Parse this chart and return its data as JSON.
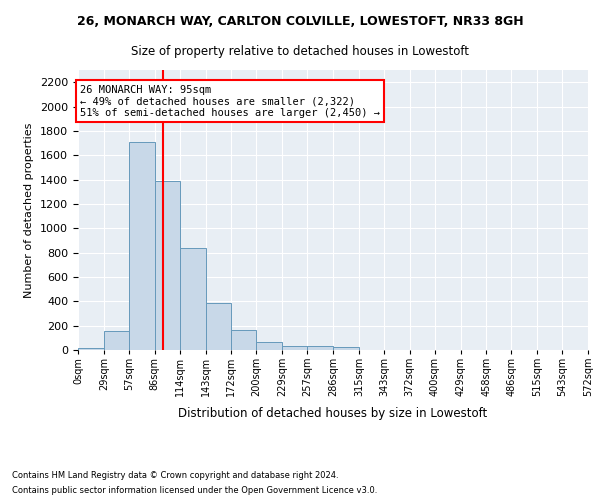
{
  "title_line1": "26, MONARCH WAY, CARLTON COLVILLE, LOWESTOFT, NR33 8GH",
  "title_line2": "Size of property relative to detached houses in Lowestoft",
  "xlabel": "Distribution of detached houses by size in Lowestoft",
  "ylabel": "Number of detached properties",
  "bin_edges": [
    0,
    29,
    57,
    86,
    114,
    143,
    172,
    200,
    229,
    257,
    286,
    315,
    343,
    372,
    400,
    429,
    458,
    486,
    515,
    543,
    572
  ],
  "bar_heights": [
    20,
    155,
    1710,
    1390,
    835,
    385,
    165,
    65,
    35,
    30,
    28,
    0,
    0,
    0,
    0,
    0,
    0,
    0,
    0,
    0
  ],
  "bar_color": "#c8d8e8",
  "bar_edge_color": "#6699bb",
  "property_size": 95,
  "vline_color": "red",
  "annotation_line1": "26 MONARCH WAY: 95sqm",
  "annotation_line2": "← 49% of detached houses are smaller (2,322)",
  "annotation_line3": "51% of semi-detached houses are larger (2,450) →",
  "annotation_box_color": "white",
  "annotation_box_edge_color": "red",
  "ylim_max": 2300,
  "yticks": [
    0,
    200,
    400,
    600,
    800,
    1000,
    1200,
    1400,
    1600,
    1800,
    2000,
    2200
  ],
  "bg_color": "#e8eef4",
  "grid_color": "white",
  "footer_line1": "Contains HM Land Registry data © Crown copyright and database right 2024.",
  "footer_line2": "Contains public sector information licensed under the Open Government Licence v3.0."
}
